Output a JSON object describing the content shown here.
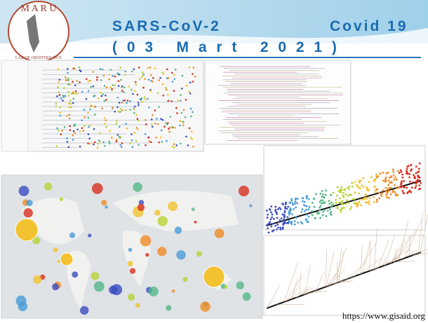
{
  "logo": {
    "letters": "M A R U",
    "subtitle": "LAB OF ORNITHOLOGY"
  },
  "header": {
    "title_left": "SARS-CoV-2",
    "title_right": "Covid 19",
    "date": "( 0 3   M a r t   2 0 2 1 )"
  },
  "footer": {
    "source": "https://www.gisaid.org"
  }
}
